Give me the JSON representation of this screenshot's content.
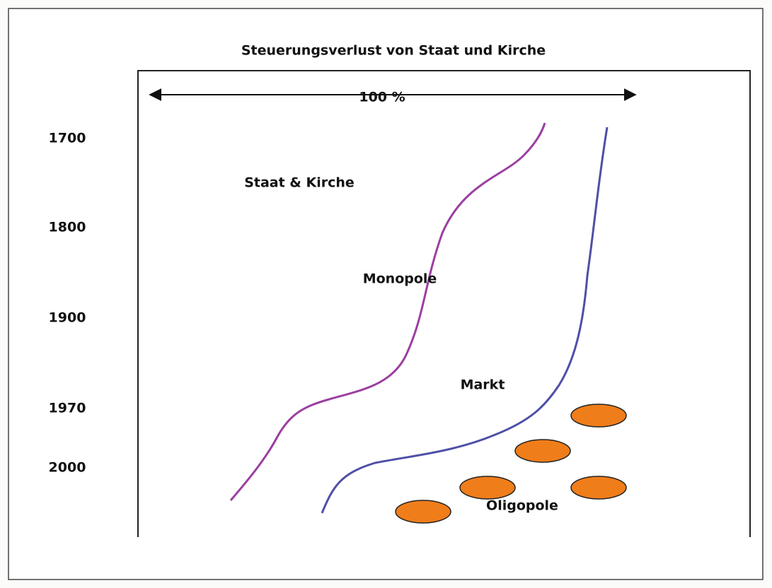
{
  "title": "Steuerungsverlust von Staat und Kirche",
  "scale_label": "100 %",
  "years": [
    "1700",
    "1800",
    "1900",
    "1970",
    "2000"
  ],
  "regions": {
    "state_church": "Staat & Kirche",
    "monopolies": "Monopole",
    "market": "Markt",
    "oligopolies": "Oligopole"
  }
}
